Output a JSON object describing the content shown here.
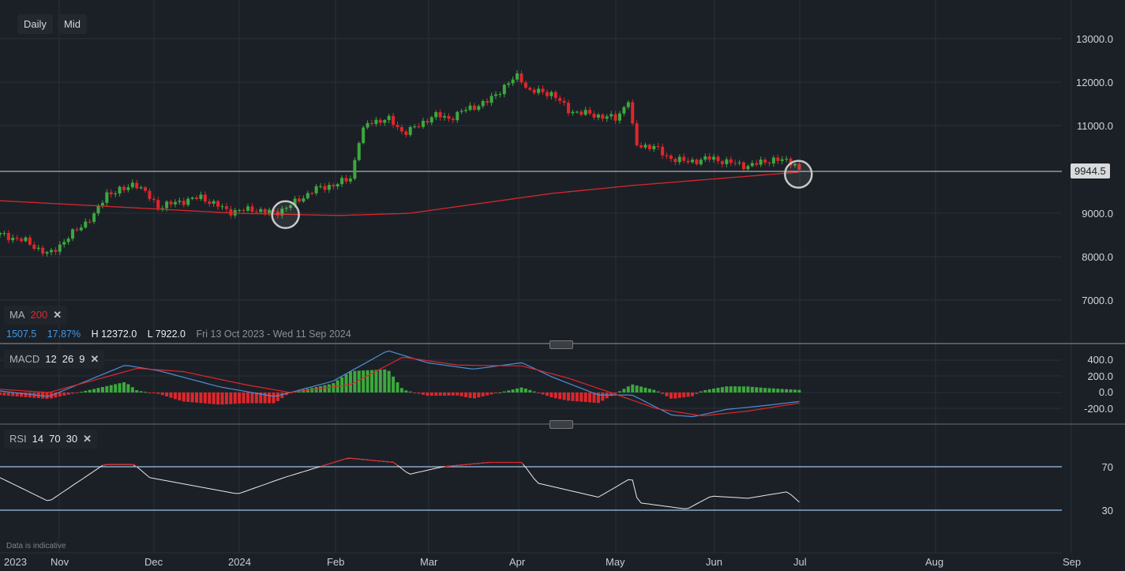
{
  "toolbar": {
    "timeframe": "Daily",
    "price_type": "Mid"
  },
  "ma_legend": {
    "label": "MA",
    "period": "200",
    "close": "✕"
  },
  "stats": {
    "change": "1507.5",
    "change_pct": "17.87%",
    "high": "H 12372.0",
    "low": "L 7922.0",
    "range": "Fri 13 Oct 2023 - Wed 11 Sep 2024"
  },
  "macd_legend": {
    "label": "MACD",
    "fast": "12",
    "slow": "26",
    "signal": "9",
    "close": "✕"
  },
  "rsi_legend": {
    "label": "RSI",
    "period": "14",
    "upper": "70",
    "lower": "30",
    "close": "✕"
  },
  "footnote": "Data is indicative",
  "colors": {
    "up": "#3da83d",
    "down": "#e0262b",
    "ma": "#d8262b",
    "macd": "#4a8fd6",
    "signal": "#e0262b",
    "rsi": "#e8e8e8",
    "rsi_band": "#9cc3e6"
  },
  "chart_data": {
    "type": "candlestick",
    "x_unit": "calendar days since 13 Oct 2023",
    "price_axis": {
      "ticks": [
        "13000.0",
        "12000.0",
        "11000.0",
        "9000.0",
        "8000.0",
        "7000.0"
      ],
      "range": [
        6400,
        13300
      ]
    },
    "last_price": "9944.5",
    "x_ticks": [
      "2023",
      "Nov",
      "Dec",
      "2024",
      "Feb",
      "Mar",
      "Apr",
      "May",
      "Jun",
      "Jul",
      "Aug",
      "Sep"
    ],
    "close_keypoints": [
      [
        0,
        8490
      ],
      [
        8,
        8350
      ],
      [
        16,
        8020
      ],
      [
        23,
        8470
      ],
      [
        31,
        8950
      ],
      [
        35,
        9440
      ],
      [
        41,
        9530
      ],
      [
        44,
        9700
      ],
      [
        52,
        9130
      ],
      [
        59,
        9250
      ],
      [
        66,
        9350
      ],
      [
        75,
        9020
      ],
      [
        83,
        9070
      ],
      [
        90,
        8980
      ],
      [
        96,
        9200
      ],
      [
        103,
        9530
      ],
      [
        111,
        9670
      ],
      [
        115,
        9800
      ],
      [
        118,
        10800
      ],
      [
        121,
        11070
      ],
      [
        127,
        11160
      ],
      [
        132,
        10840
      ],
      [
        137,
        10980
      ],
      [
        142,
        11250
      ],
      [
        147,
        11160
      ],
      [
        152,
        11350
      ],
      [
        160,
        11560
      ],
      [
        165,
        11890
      ],
      [
        170,
        12160
      ],
      [
        173,
        11800
      ],
      [
        181,
        11740
      ],
      [
        186,
        11350
      ],
      [
        194,
        11250
      ],
      [
        202,
        11160
      ],
      [
        206,
        11620
      ],
      [
        208,
        10530
      ],
      [
        214,
        10530
      ],
      [
        218,
        10290
      ],
      [
        225,
        10160
      ],
      [
        233,
        10250
      ],
      [
        238,
        10160
      ],
      [
        245,
        10070
      ],
      [
        253,
        10220
      ],
      [
        260,
        10160
      ],
      [
        262,
        9945
      ]
    ],
    "ma200": [
      [
        0,
        9270
      ],
      [
        78,
        8980
      ],
      [
        111,
        8930
      ],
      [
        134,
        8980
      ],
      [
        181,
        9440
      ],
      [
        207,
        9620
      ],
      [
        262,
        9930
      ]
    ],
    "macd": {
      "axis_ticks": [
        "400.0",
        "200.0",
        "0.0",
        "-200.0"
      ],
      "macd": [
        [
          0,
          20
        ],
        [
          16,
          -50
        ],
        [
          41,
          340
        ],
        [
          52,
          270
        ],
        [
          72,
          70
        ],
        [
          90,
          -50
        ],
        [
          109,
          140
        ],
        [
          127,
          520
        ],
        [
          140,
          370
        ],
        [
          155,
          290
        ],
        [
          171,
          370
        ],
        [
          181,
          190
        ],
        [
          196,
          -30
        ],
        [
          207,
          -30
        ],
        [
          220,
          -280
        ],
        [
          227,
          -300
        ],
        [
          238,
          -210
        ],
        [
          251,
          -160
        ],
        [
          262,
          -110
        ]
      ],
      "signal": [
        [
          0,
          40
        ],
        [
          16,
          0
        ],
        [
          45,
          300
        ],
        [
          60,
          260
        ],
        [
          80,
          100
        ],
        [
          95,
          0
        ],
        [
          115,
          100
        ],
        [
          132,
          440
        ],
        [
          150,
          340
        ],
        [
          171,
          330
        ],
        [
          186,
          180
        ],
        [
          200,
          0
        ],
        [
          215,
          -200
        ],
        [
          230,
          -290
        ],
        [
          245,
          -230
        ],
        [
          262,
          -130
        ]
      ]
    },
    "rsi": {
      "axis_ticks": [
        "70",
        "30"
      ],
      "values": [
        [
          0,
          60
        ],
        [
          16,
          38
        ],
        [
          34,
          72
        ],
        [
          44,
          72
        ],
        [
          49,
          60
        ],
        [
          78,
          45
        ],
        [
          93,
          60
        ],
        [
          114,
          78
        ],
        [
          129,
          74
        ],
        [
          134,
          63
        ],
        [
          145,
          70
        ],
        [
          160,
          74
        ],
        [
          171,
          74
        ],
        [
          176,
          55
        ],
        [
          196,
          42
        ],
        [
          207,
          60
        ],
        [
          209,
          37
        ],
        [
          225,
          31
        ],
        [
          233,
          43
        ],
        [
          245,
          41
        ],
        [
          258,
          47
        ],
        [
          262,
          37
        ]
      ]
    },
    "highlights": [
      [
        93,
        8950
      ],
      [
        261,
        9880
      ]
    ]
  }
}
